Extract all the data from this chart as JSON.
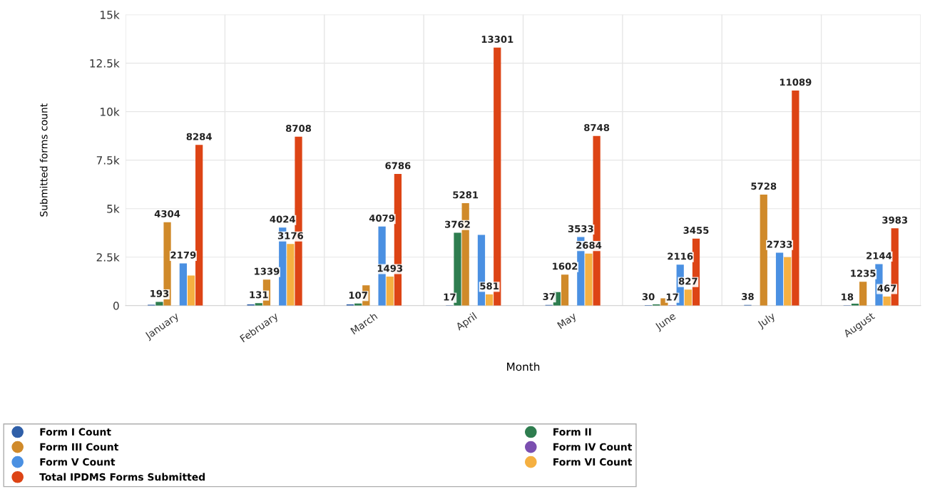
{
  "chart_data": {
    "type": "bar",
    "xlabel": "Month",
    "ylabel": "Submitted forms count",
    "categories": [
      "January",
      "February",
      "March",
      "April",
      "May",
      "June",
      "July",
      "August"
    ],
    "series": [
      {
        "name": "Form I Count",
        "color": "#2f5fa8",
        "values": [
          50,
          60,
          60,
          17,
          37,
          30,
          38,
          18
        ],
        "value_labels": [
          null,
          null,
          null,
          "17",
          "37",
          "30",
          "38",
          "18"
        ]
      },
      {
        "name": "Form II",
        "color": "#2e7d4f",
        "values": [
          193,
          131,
          107,
          3762,
          700,
          60,
          null,
          100
        ],
        "value_labels": [
          "193",
          "131",
          "107",
          "3762",
          null,
          null,
          null,
          null
        ]
      },
      {
        "name": "Form III Count",
        "color": "#d08a2a",
        "values": [
          4304,
          1339,
          1050,
          5281,
          1602,
          380,
          5728,
          1235
        ],
        "value_labels": [
          "4304",
          "1339",
          null,
          "5281",
          "1602",
          null,
          "5728",
          "1235"
        ]
      },
      {
        "name": "Form IV Count",
        "color": "#7b4fb0",
        "values": [
          null,
          null,
          null,
          null,
          null,
          17,
          null,
          null
        ],
        "value_labels": [
          null,
          null,
          null,
          null,
          null,
          "17",
          null,
          null
        ]
      },
      {
        "name": "Form V Count",
        "color": "#4a90e2",
        "values": [
          2179,
          4024,
          4079,
          3650,
          3533,
          2116,
          2733,
          2144
        ],
        "value_labels": [
          "2179",
          "4024",
          "4079",
          null,
          "3533",
          "2116",
          "2733",
          "2144"
        ]
      },
      {
        "name": "Form VI Count",
        "color": "#f5b041",
        "values": [
          1550,
          3176,
          1493,
          581,
          2684,
          827,
          2500,
          467
        ],
        "value_labels": [
          null,
          "3176",
          "1493",
          "581",
          "2684",
          "827",
          null,
          "467"
        ]
      },
      {
        "name": "Total IPDMS Forms Submitted",
        "color": "#dd4415",
        "values": [
          8284,
          8708,
          6786,
          13301,
          8748,
          3455,
          11089,
          3983
        ],
        "value_labels": [
          "8284",
          "8708",
          "6786",
          "13301",
          "8748",
          "3455",
          "11089",
          "3983"
        ]
      }
    ],
    "ylim": [
      0,
      15000
    ],
    "yticks": [
      {
        "value": 0,
        "label": "0"
      },
      {
        "value": 2500,
        "label": "2.5k"
      },
      {
        "value": 5000,
        "label": "5k"
      },
      {
        "value": 7500,
        "label": "7.5k"
      },
      {
        "value": 10000,
        "label": "10k"
      },
      {
        "value": 12500,
        "label": "12.5k"
      },
      {
        "value": 15000,
        "label": "15k"
      }
    ],
    "grid": true,
    "legend": "bottom left"
  }
}
